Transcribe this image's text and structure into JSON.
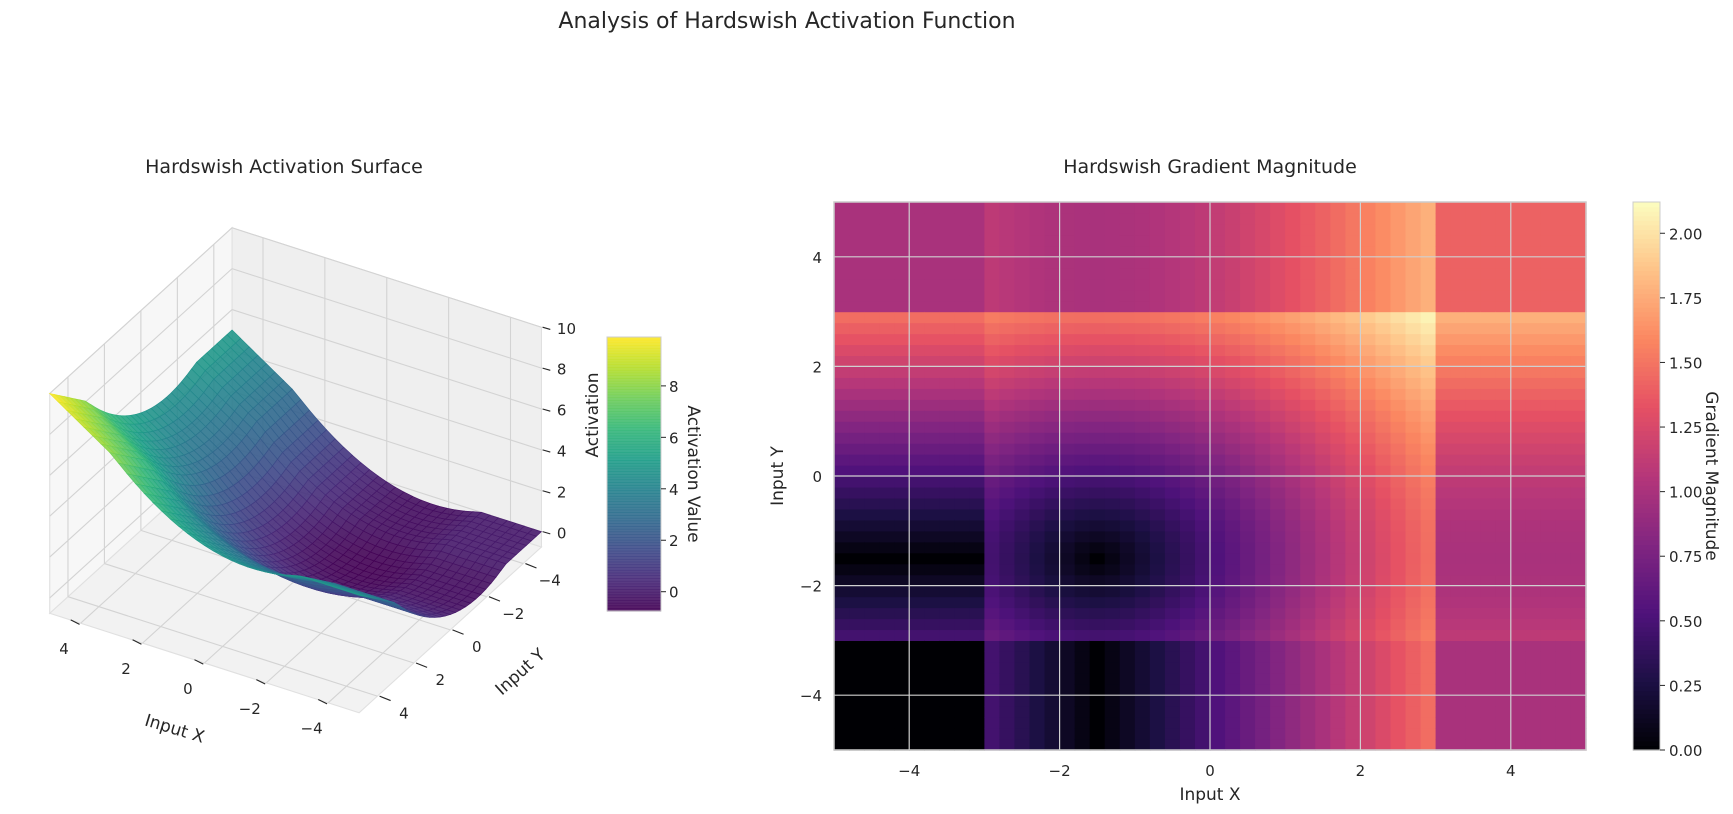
{
  "suptitle": "Analysis of Hardswish Activation Function",
  "chart_data": [
    {
      "type": "surface3d",
      "title": "Hardswish Activation Surface",
      "xlabel": "Input X",
      "ylabel": "Input Y",
      "zlabel": "Activation",
      "function": "hardswish(x) + hardswish(y)",
      "xlim": [
        -5,
        5
      ],
      "ylim": [
        -5,
        5
      ],
      "zlim": [
        -0.75,
        10
      ],
      "xticks": [
        4,
        2,
        0,
        -2,
        -4
      ],
      "yticks": [
        -4,
        -2,
        0,
        2,
        4
      ],
      "zticks": [
        0,
        2,
        4,
        6,
        8,
        10
      ],
      "xtick_labels": [
        "4",
        "2",
        "0",
        "−2",
        "−4"
      ],
      "ytick_labels": [
        "−4",
        "−2",
        "0",
        "2",
        "4"
      ],
      "ztick_labels": [
        "0",
        "2",
        "4",
        "6",
        "8",
        "10"
      ],
      "colormap": "viridis",
      "colorbar": {
        "label": "Activation Value",
        "range": [
          -0.75,
          9.9
        ],
        "ticks": [
          0,
          2,
          4,
          6,
          8
        ],
        "tick_labels": [
          "0",
          "2",
          "4",
          "6",
          "8"
        ]
      }
    },
    {
      "type": "heatmap",
      "title": "Hardswish Gradient Magnitude",
      "xlabel": "Input X",
      "ylabel": "Input Y",
      "function": "sqrt(hardswish'(x)^2 + hardswish'(y)^2)",
      "xlim": [
        -5,
        5
      ],
      "ylim": [
        -5,
        5
      ],
      "resolution": 50,
      "xticks": [
        -4,
        -2,
        0,
        2,
        4
      ],
      "yticks": [
        -4,
        -2,
        0,
        2,
        4
      ],
      "xtick_labels": [
        "−4",
        "−2",
        "0",
        "2",
        "4"
      ],
      "ytick_labels": [
        "−4",
        "−2",
        "0",
        "2",
        "4"
      ],
      "grid": true,
      "colormap": "magma",
      "colorbar": {
        "label": "Gradient Magnitude",
        "range": [
          0,
          2.121
        ],
        "ticks": [
          0,
          0.25,
          0.5,
          0.75,
          1.0,
          1.25,
          1.5,
          1.75,
          2.0
        ],
        "tick_labels": [
          "0.00",
          "0.25",
          "0.50",
          "0.75",
          "1.00",
          "1.25",
          "1.50",
          "1.75",
          "2.00"
        ]
      }
    }
  ]
}
